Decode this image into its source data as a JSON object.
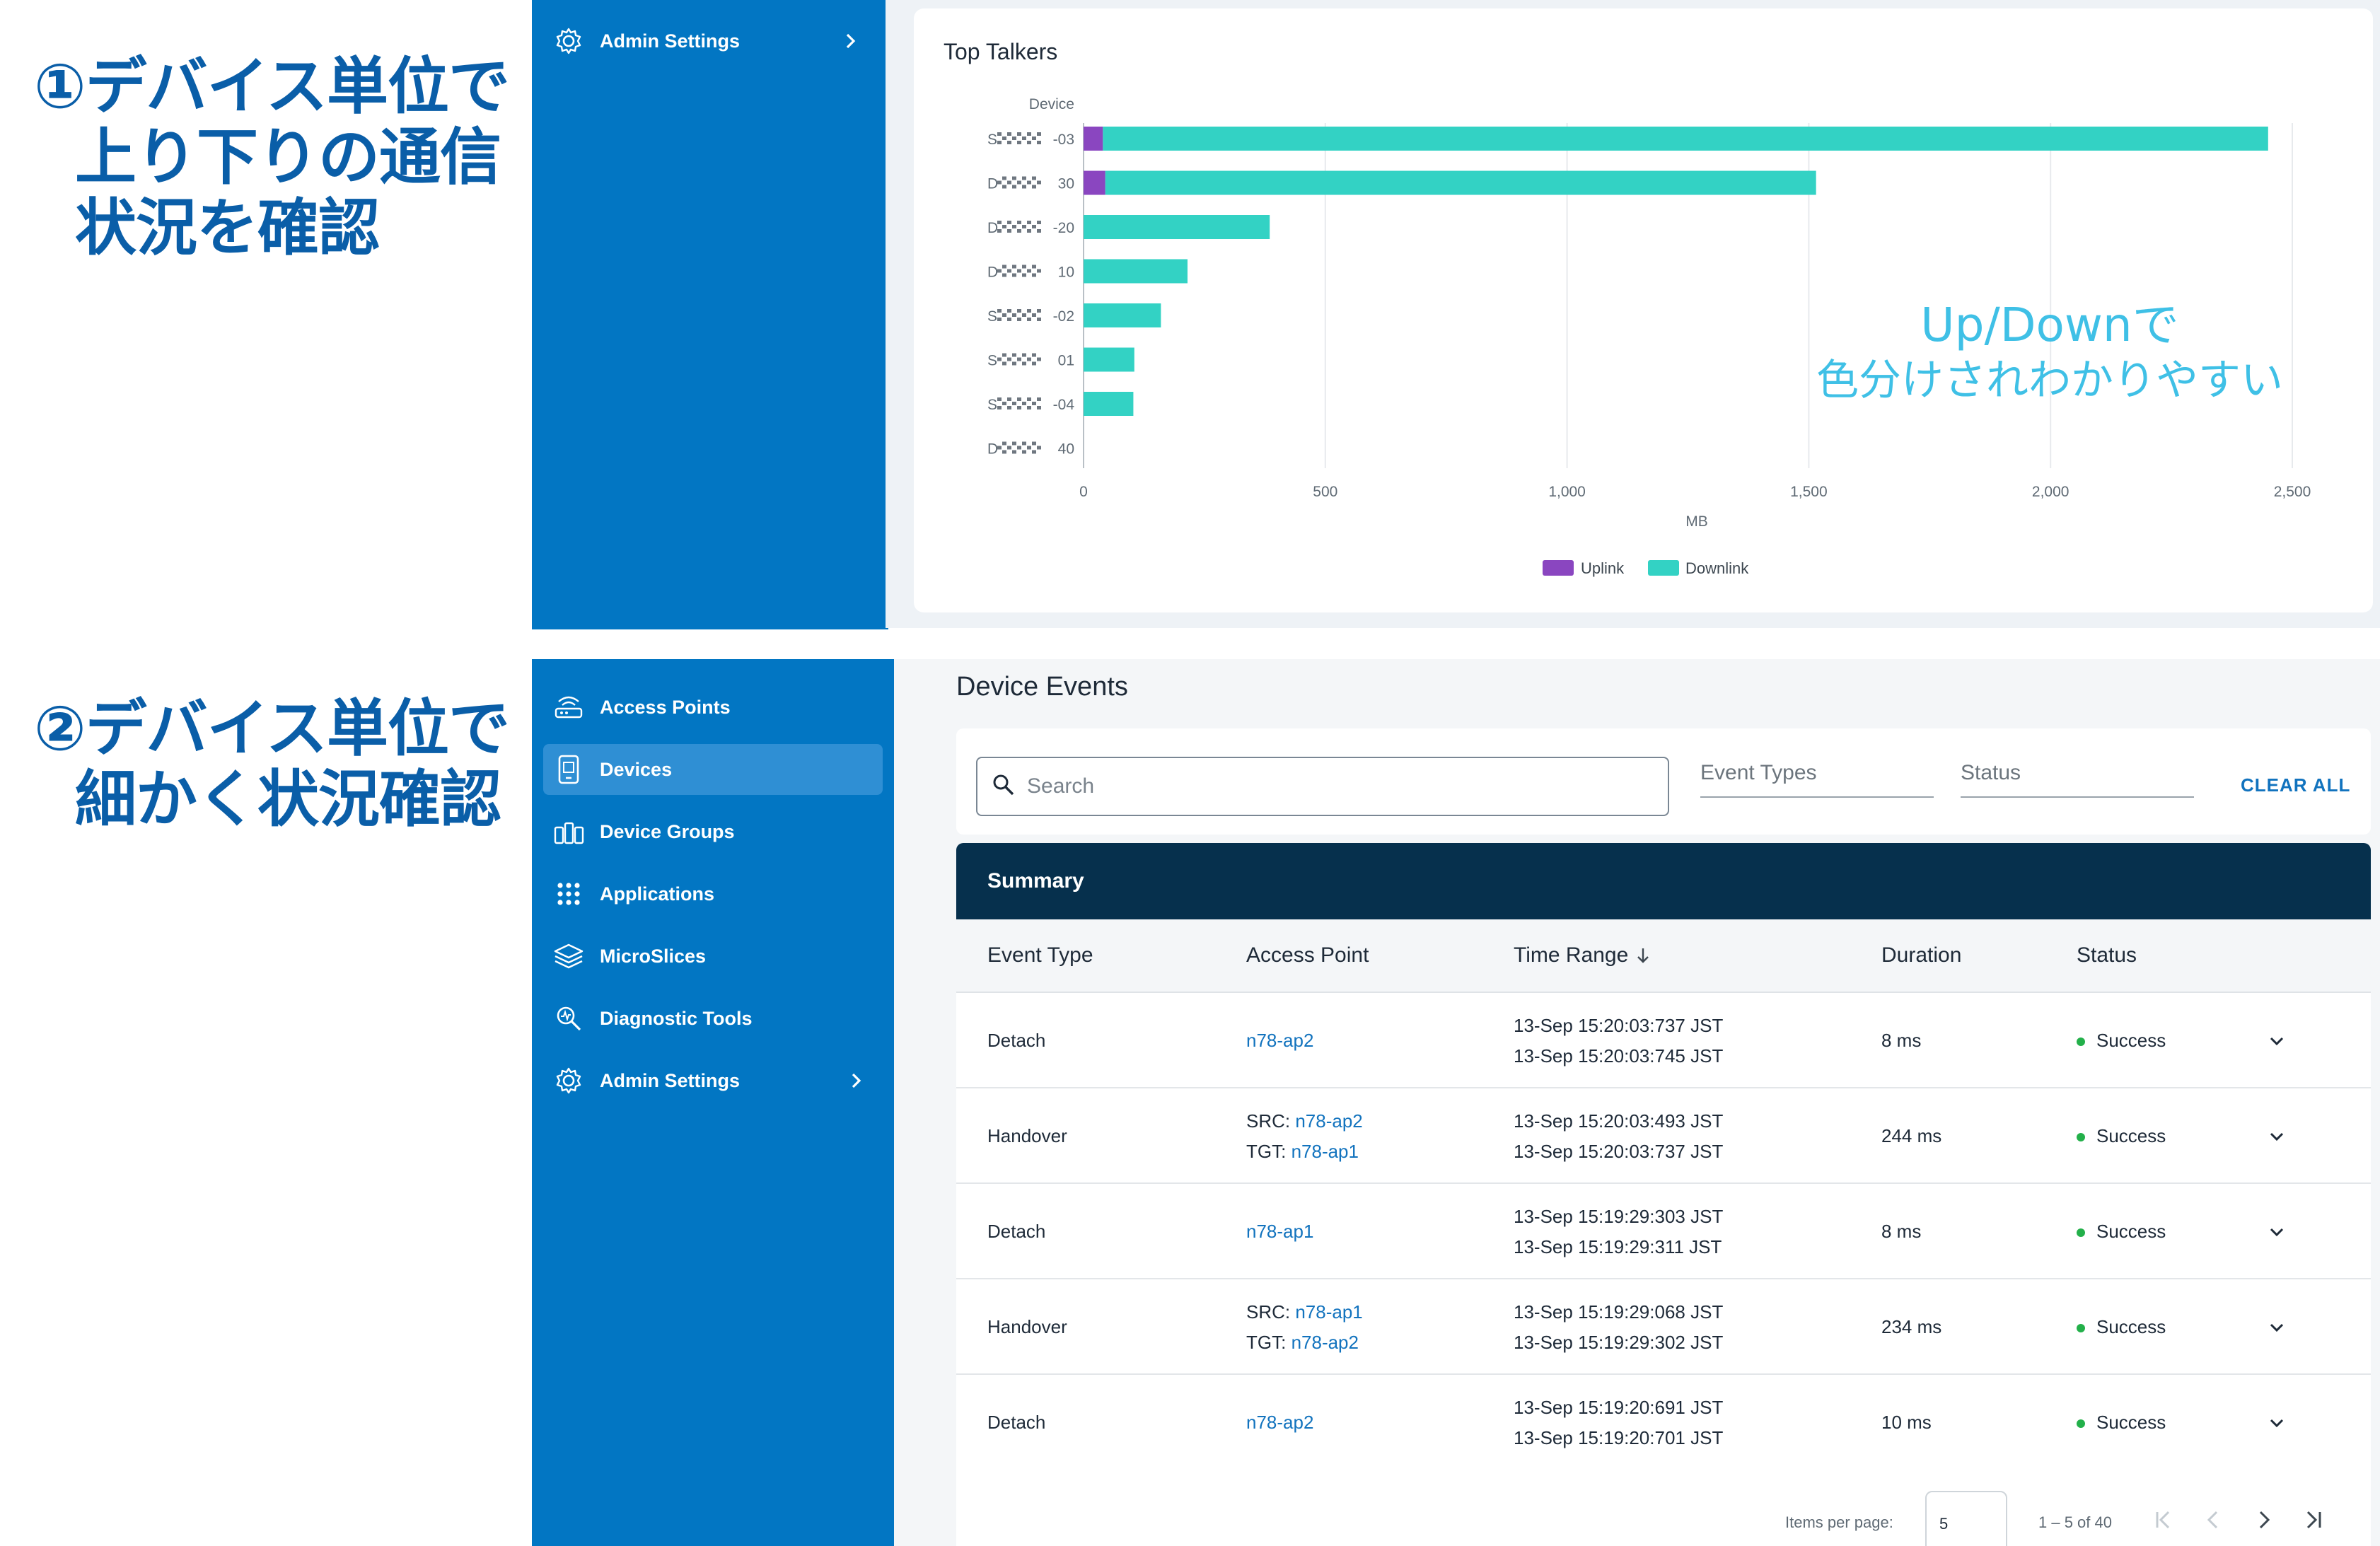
{
  "annotations": {
    "first": [
      "①デバイス単位で",
      "上り下りの通信",
      "状況を確認"
    ],
    "second": [
      "②デバイス単位で",
      "細かく状況確認"
    ]
  },
  "overlay_note": [
    "Up/Downで",
    "色分けされわかりやすい"
  ],
  "colors": {
    "sidebar": "#0276c3",
    "sidebar_active": "#2f8fd4",
    "summary_bar": "#06304d",
    "uplink": "#8a46c0",
    "downlink": "#33d2c4",
    "annotation": "#0a5ea8",
    "overlay_note": "#3fc0e6",
    "link": "#1273be",
    "success": "#23b04a"
  },
  "top_sidebar": {
    "items": [
      {
        "label": "Admin Settings",
        "icon": "gear-icon"
      }
    ]
  },
  "sidebar": {
    "items": [
      {
        "label": "Access Points",
        "icon": "access-point-icon"
      },
      {
        "label": "Devices",
        "icon": "device-icon"
      },
      {
        "label": "Device Groups",
        "icon": "device-groups-icon"
      },
      {
        "label": "Applications",
        "icon": "grid-icon"
      },
      {
        "label": "MicroSlices",
        "icon": "layers-icon"
      },
      {
        "label": "Diagnostic Tools",
        "icon": "diagnostic-icon"
      },
      {
        "label": "Admin Settings",
        "icon": "gear-icon"
      }
    ],
    "active": "Devices"
  },
  "chart_data": {
    "type": "bar",
    "orientation": "horizontal",
    "stacked": true,
    "title": "Top Talkers",
    "ylabel": "Device",
    "xlabel": "MB",
    "categories": [
      "S▒▒▒▒-03",
      "D▒▒▒▒-30",
      "D▒▒▒▒-20",
      "D▒▒▒▒-10",
      "S▒▒▒▒-02",
      "S▒▒▒▒-01",
      "S▒▒▒▒-04",
      "D▒▒▒▒-40"
    ],
    "category_suffixes": [
      "-03",
      "30",
      "-20",
      "10",
      "-02",
      "01",
      "-04",
      "40"
    ],
    "category_prefixes": [
      "S",
      "D",
      "D",
      "D",
      "S",
      "S",
      "S",
      "D"
    ],
    "series": [
      {
        "name": "Uplink",
        "values": [
          40,
          45,
          0,
          0,
          0,
          0,
          0,
          0
        ]
      },
      {
        "name": "Downlink",
        "values": [
          2410,
          1470,
          385,
          215,
          160,
          105,
          103,
          0
        ]
      }
    ],
    "xlim": [
      0,
      2500
    ],
    "xticks": [
      0,
      500,
      1000,
      1500,
      2000,
      2500
    ],
    "xtick_labels": [
      "0",
      "500",
      "1,000",
      "1,500",
      "2,000",
      "2,500"
    ],
    "grid": true,
    "legend": "bottom-center"
  },
  "events": {
    "title": "Device Events",
    "search_placeholder": "Search",
    "event_types_label": "Event Types",
    "status_label": "Status",
    "clear_all": "CLEAR ALL",
    "summary_label": "Summary",
    "columns": {
      "event_type": "Event Type",
      "access_point": "Access Point",
      "time_range": "Time Range",
      "duration": "Duration",
      "status": "Status"
    },
    "rows": [
      {
        "type": "Detach",
        "ap": [
          {
            "prefix": "",
            "name": "n78-ap2"
          }
        ],
        "start": "13-Sep 15:20:03:737 JST",
        "end": "13-Sep 15:20:03:745 JST",
        "duration": "8 ms",
        "status": "Success"
      },
      {
        "type": "Handover",
        "ap": [
          {
            "prefix": "SRC: ",
            "name": "n78-ap2"
          },
          {
            "prefix": "TGT: ",
            "name": "n78-ap1"
          }
        ],
        "start": "13-Sep 15:20:03:493 JST",
        "end": "13-Sep 15:20:03:737 JST",
        "duration": "244 ms",
        "status": "Success"
      },
      {
        "type": "Detach",
        "ap": [
          {
            "prefix": "",
            "name": "n78-ap1"
          }
        ],
        "start": "13-Sep 15:19:29:303 JST",
        "end": "13-Sep 15:19:29:311 JST",
        "duration": "8 ms",
        "status": "Success"
      },
      {
        "type": "Handover",
        "ap": [
          {
            "prefix": "SRC: ",
            "name": "n78-ap1"
          },
          {
            "prefix": "TGT: ",
            "name": "n78-ap2"
          }
        ],
        "start": "13-Sep 15:19:29:068 JST",
        "end": "13-Sep 15:19:29:302 JST",
        "duration": "234 ms",
        "status": "Success"
      },
      {
        "type": "Detach",
        "ap": [
          {
            "prefix": "",
            "name": "n78-ap2"
          }
        ],
        "start": "13-Sep 15:19:20:691 JST",
        "end": "13-Sep 15:19:20:701 JST",
        "duration": "10 ms",
        "status": "Success"
      }
    ],
    "pager": {
      "items_per_page_label": "Items per page:",
      "items_per_page": "5",
      "range": "1 – 5 of 40"
    }
  }
}
